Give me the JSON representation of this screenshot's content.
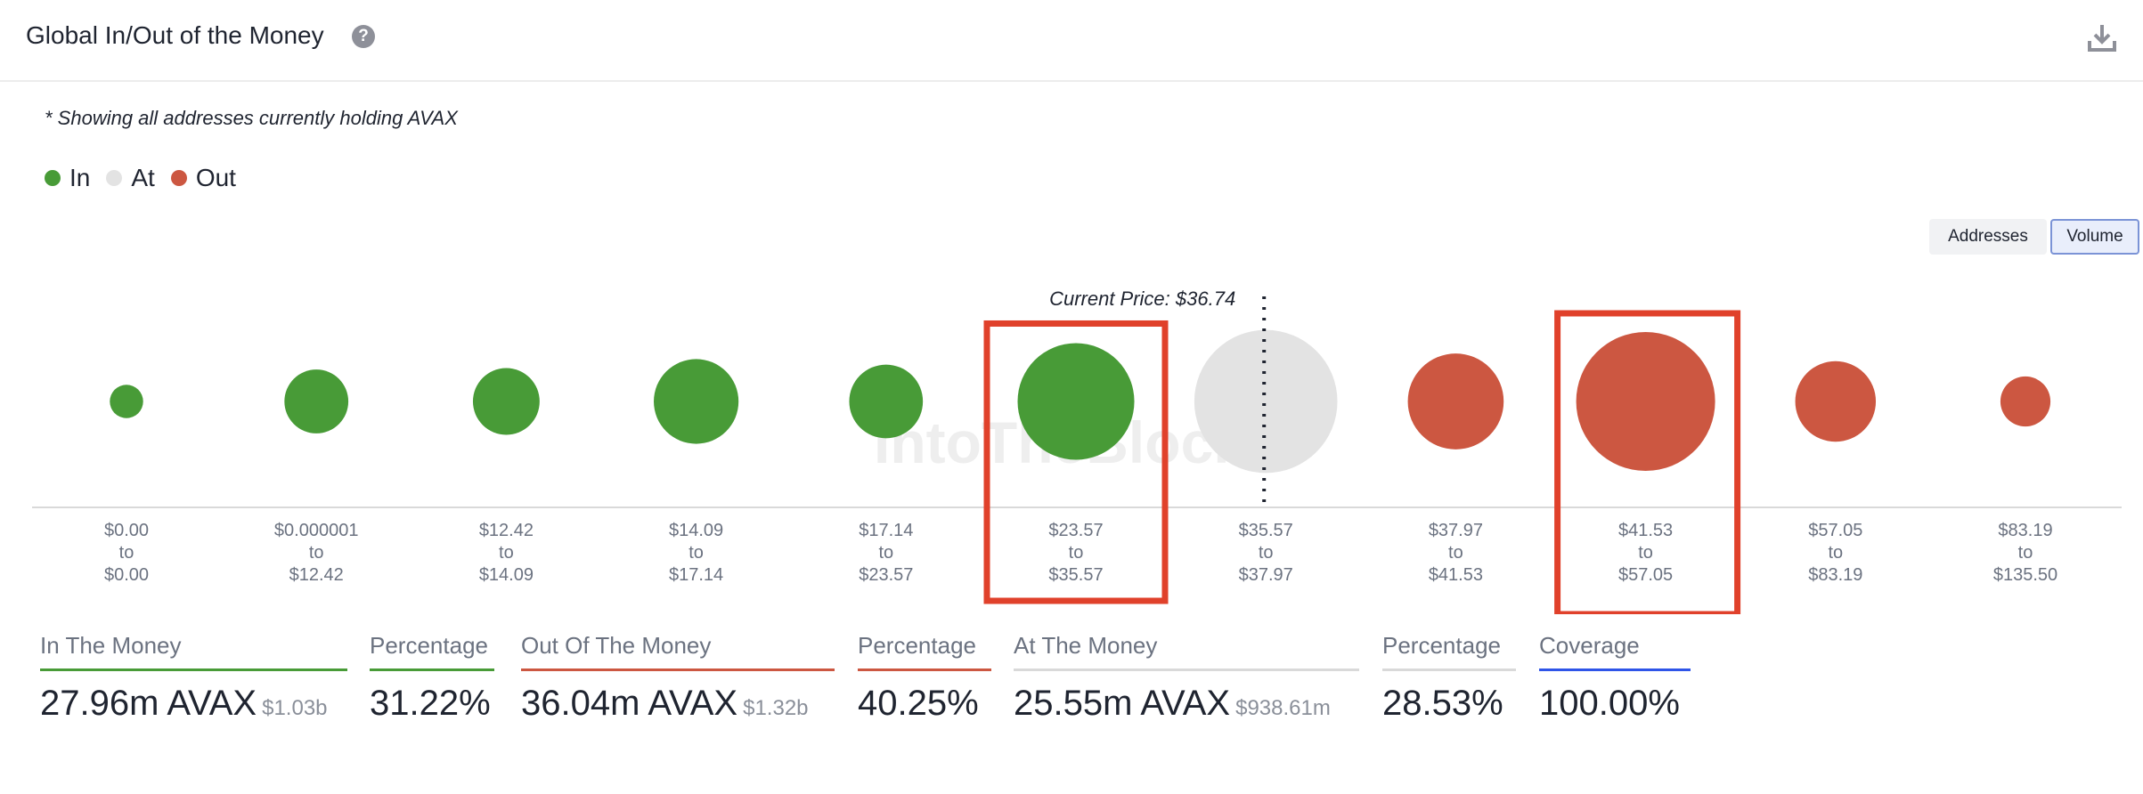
{
  "header": {
    "title": "Global In/Out of the Money",
    "help_glyph": "?",
    "download_icon": "download-icon"
  },
  "note": "* Showing all addresses currently holding AVAX",
  "legend": [
    {
      "label": "In",
      "color": "#489b37"
    },
    {
      "label": "At",
      "color": "#e3e3e3"
    },
    {
      "label": "Out",
      "color": "#cc5741"
    }
  ],
  "toggles": {
    "addresses_label": "Addresses",
    "volume_label": "Volume",
    "active": "Volume"
  },
  "watermark": "IntoTheBlock",
  "chart_data": {
    "type": "scatter",
    "title": "Global In/Out of the Money",
    "current_price_label": "Current Price: $36.74",
    "current_price_after_index": 6,
    "size_metric": "Volume",
    "buckets": [
      {
        "from": "$0.00",
        "to_word": "to",
        "to": "$0.00",
        "status": "in",
        "relative_size": 0.24
      },
      {
        "from": "$0.000001",
        "to_word": "to",
        "to": "$12.42",
        "status": "in",
        "relative_size": 0.46
      },
      {
        "from": "$12.42",
        "to_word": "to",
        "to": "$14.09",
        "status": "in",
        "relative_size": 0.48
      },
      {
        "from": "$14.09",
        "to_word": "to",
        "to": "$17.14",
        "status": "in",
        "relative_size": 0.61
      },
      {
        "from": "$17.14",
        "to_word": "to",
        "to": "$23.57",
        "status": "in",
        "relative_size": 0.53
      },
      {
        "from": "$23.57",
        "to_word": "to",
        "to": "$35.57",
        "status": "in",
        "relative_size": 0.84
      },
      {
        "from": "$35.57",
        "to_word": "to",
        "to": "$37.97",
        "status": "at",
        "relative_size": 1.03
      },
      {
        "from": "$37.97",
        "to_word": "to",
        "to": "$41.53",
        "status": "out",
        "relative_size": 0.69
      },
      {
        "from": "$41.53",
        "to_word": "to",
        "to": "$57.05",
        "status": "out",
        "relative_size": 1.0
      },
      {
        "from": "$57.05",
        "to_word": "to",
        "to": "$83.19",
        "status": "out",
        "relative_size": 0.58
      },
      {
        "from": "$83.19",
        "to_word": "to",
        "to": "$135.50",
        "status": "out",
        "relative_size": 0.36
      }
    ],
    "highlighted_indices": [
      5,
      8
    ],
    "colors": {
      "in": "#489b37",
      "at": "#e3e3e3",
      "out": "#cc5741",
      "highlight": "#e0412b"
    }
  },
  "stats": [
    {
      "label": "In The Money",
      "value": "27.96m AVAX",
      "sub": "$1.03b",
      "underline": "#489b37"
    },
    {
      "label": "Percentage",
      "value": "31.22%",
      "sub": "",
      "underline": "#489b37"
    },
    {
      "label": "Out Of The Money",
      "value": "36.04m AVAX",
      "sub": "$1.32b",
      "underline": "#cc5741"
    },
    {
      "label": "Percentage",
      "value": "40.25%",
      "sub": "",
      "underline": "#cc5741"
    },
    {
      "label": "At The Money",
      "value": "25.55m AVAX",
      "sub": "$938.61m",
      "underline": "#d9d9d9"
    },
    {
      "label": "Percentage",
      "value": "28.53%",
      "sub": "",
      "underline": "#d9d9d9"
    },
    {
      "label": "Coverage",
      "value": "100.00%",
      "sub": "",
      "underline": "#2f55e8"
    }
  ]
}
